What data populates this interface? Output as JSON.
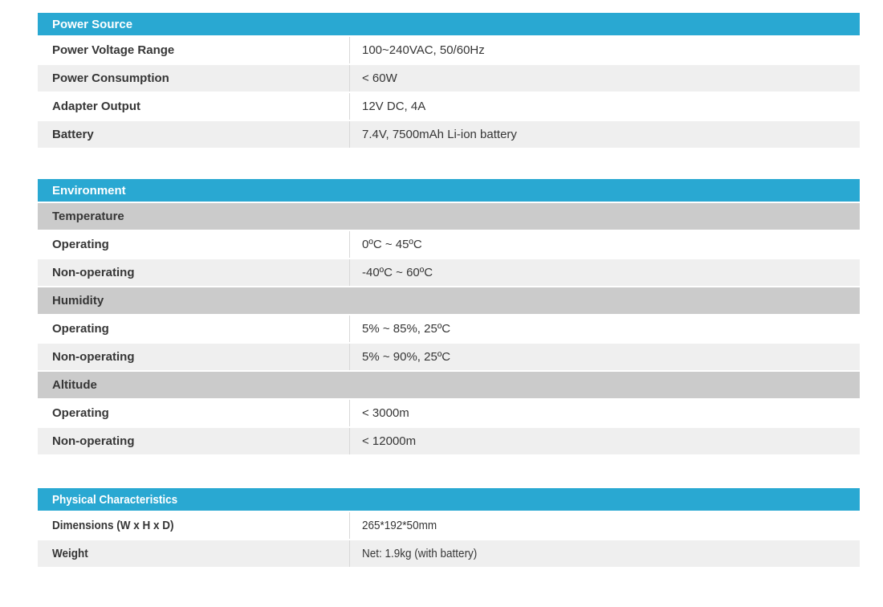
{
  "colors": {
    "header_bg": "#29a8d2",
    "header_text": "#ffffff",
    "subheader_bg": "#cbcbcb",
    "row_white_bg": "#ffffff",
    "row_alt_bg": "#efefef",
    "divider": "#d8d8d8",
    "text": "#363636"
  },
  "tables": [
    {
      "title": "Power Source",
      "condensed": false,
      "rows": [
        {
          "type": "data",
          "label": "Power Voltage Range",
          "value": "100~240VAC, 50/60Hz"
        },
        {
          "type": "data",
          "label": "Power Consumption",
          "value": "< 60W"
        },
        {
          "type": "data",
          "label": "Adapter Output",
          "value": "12V DC, 4A"
        },
        {
          "type": "data",
          "label": "Battery",
          "value": "7.4V, 7500mAh Li-ion battery"
        }
      ]
    },
    {
      "title": "Environment",
      "condensed": false,
      "rows": [
        {
          "type": "subheader",
          "label": "Temperature"
        },
        {
          "type": "data",
          "label": "Operating",
          "value": "0ºC ~ 45ºC"
        },
        {
          "type": "data",
          "label": "Non-operating",
          "value": "-40ºC ~ 60ºC"
        },
        {
          "type": "subheader",
          "label": "Humidity"
        },
        {
          "type": "data",
          "label": "Operating",
          "value": "5% ~ 85%, 25ºC"
        },
        {
          "type": "data",
          "label": "Non-operating",
          "value": "5% ~ 90%, 25ºC"
        },
        {
          "type": "subheader",
          "label": "Altitude"
        },
        {
          "type": "data",
          "label": "Operating",
          "value": "< 3000m"
        },
        {
          "type": "data",
          "label": "Non-operating",
          "value": "< 12000m"
        }
      ]
    },
    {
      "title": "Physical Characteristics",
      "condensed": true,
      "rows": [
        {
          "type": "data",
          "label": "Dimensions (W x H x D)",
          "value": "265*192*50mm"
        },
        {
          "type": "data",
          "label": "Weight",
          "value": "Net: 1.9kg (with battery)"
        }
      ]
    }
  ]
}
